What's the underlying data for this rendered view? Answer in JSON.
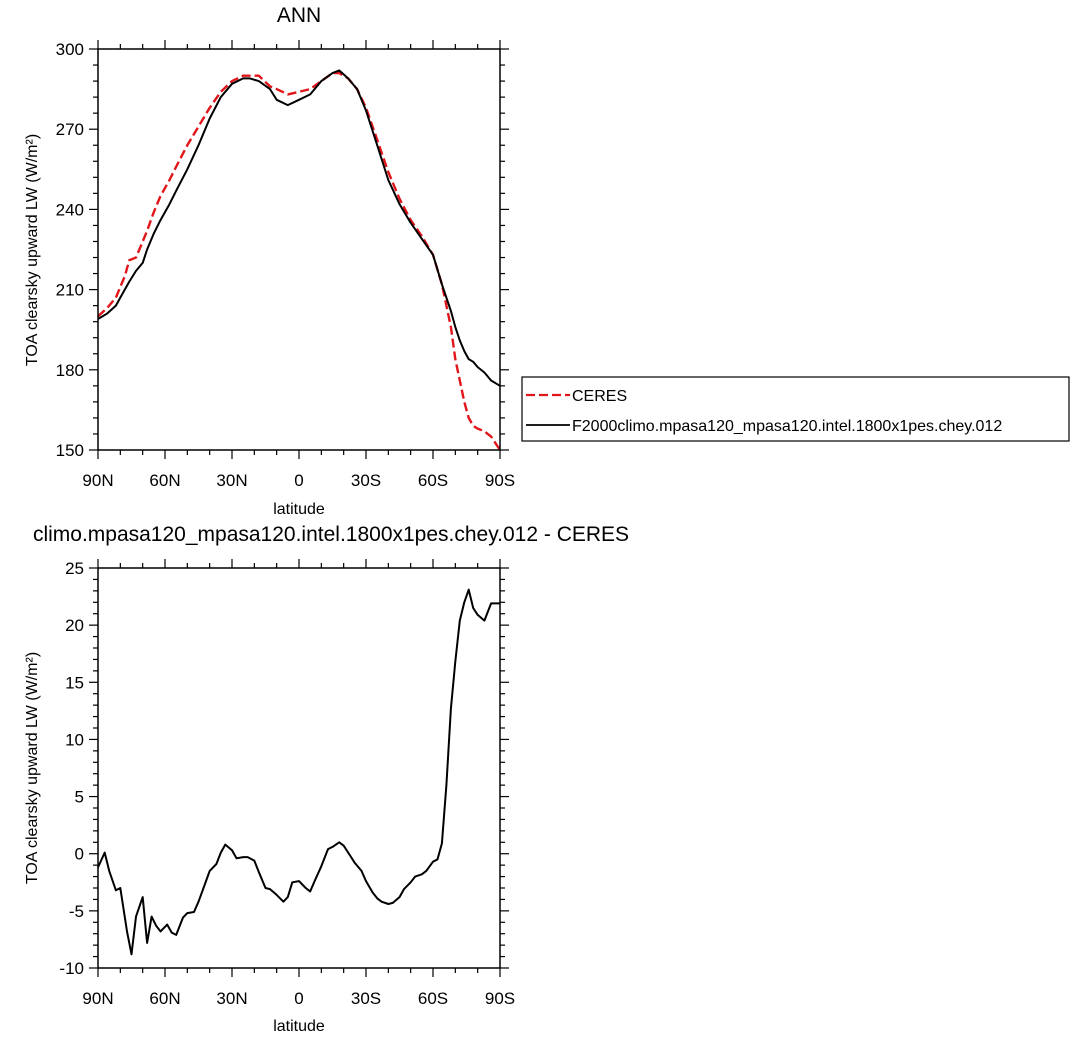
{
  "chart_data": [
    {
      "type": "line",
      "title": "ANN",
      "xlabel": "latitude",
      "ylabel": "TOA clearsky upward LW (W/m²)",
      "xlim": [
        -90,
        90
      ],
      "ylim": [
        150,
        300
      ],
      "x_ticks": [
        -90,
        -60,
        -30,
        0,
        30,
        60,
        90
      ],
      "x_tick_labels": [
        "90N",
        "60N",
        "30N",
        "0",
        "30S",
        "60S",
        "90S"
      ],
      "y_ticks": [
        150,
        180,
        210,
        240,
        270,
        300
      ],
      "y_tick_labels": [
        "150",
        "180",
        "210",
        "240",
        "270",
        "300"
      ],
      "legend_position": "right",
      "series": [
        {
          "name": "CERES",
          "color": "#e0161b",
          "style": "dashed",
          "x": [
            -90,
            -86,
            -82,
            -80,
            -78,
            -76,
            -73,
            -70,
            -68,
            -65,
            -62,
            -58,
            -55,
            -50,
            -45,
            -40,
            -35,
            -30,
            -25,
            -22,
            -18,
            -13,
            -10,
            -5,
            0,
            5,
            10,
            15,
            18,
            22,
            26,
            30,
            35,
            40,
            45,
            50,
            55,
            60,
            64,
            68,
            70,
            72,
            74,
            76,
            78,
            80,
            83,
            86,
            90
          ],
          "values": [
            200,
            203,
            207,
            211,
            215,
            221,
            222,
            228,
            232,
            239,
            245,
            251,
            256,
            264,
            271,
            278,
            284,
            288,
            290,
            290,
            290,
            286,
            285,
            283,
            284,
            285,
            288,
            291,
            291,
            289,
            285,
            278,
            266,
            254,
            244,
            236,
            230,
            223,
            212,
            196,
            184,
            176,
            168,
            162,
            159,
            158,
            157,
            155,
            150
          ]
        },
        {
          "name": "F2000climo.mpasa120_mpasa120.intel.1800x1pes.chey.012",
          "color": "#000000",
          "style": "solid",
          "x": [
            -90,
            -86,
            -82,
            -80,
            -78,
            -76,
            -73,
            -70,
            -68,
            -65,
            -62,
            -58,
            -55,
            -50,
            -45,
            -40,
            -35,
            -30,
            -25,
            -22,
            -18,
            -13,
            -10,
            -5,
            0,
            5,
            10,
            15,
            18,
            22,
            26,
            30,
            35,
            40,
            45,
            50,
            55,
            60,
            64,
            68,
            70,
            72,
            74,
            76,
            78,
            80,
            83,
            86,
            90
          ],
          "values": [
            199,
            201,
            204,
            207,
            210,
            213,
            217,
            220,
            225,
            231,
            236,
            242,
            247,
            255,
            264,
            274,
            282,
            287,
            289,
            289,
            288,
            285,
            281,
            279,
            281,
            283,
            288,
            291,
            292,
            289,
            285,
            277,
            264,
            251,
            242,
            235,
            229,
            223,
            212,
            202,
            196,
            191,
            187,
            184,
            183,
            181,
            179,
            176,
            174
          ]
        }
      ]
    },
    {
      "type": "line",
      "title": "climo.mpasa120_mpasa120.intel.1800x1pes.chey.012 - CERES",
      "xlabel": "latitude",
      "ylabel": "TOA clearsky upward LW (W/m²)",
      "xlim": [
        -90,
        90
      ],
      "ylim": [
        -10,
        25
      ],
      "x_ticks": [
        -90,
        -60,
        -30,
        0,
        30,
        60,
        90
      ],
      "x_tick_labels": [
        "90N",
        "60N",
        "30N",
        "0",
        "30S",
        "60S",
        "90S"
      ],
      "y_ticks": [
        -10,
        -5,
        0,
        5,
        10,
        15,
        20,
        25
      ],
      "y_tick_labels": [
        "-10",
        "-5",
        "0",
        "5",
        "10",
        "15",
        "20",
        "25"
      ],
      "series": [
        {
          "color": "#000000",
          "style": "solid",
          "x": [
            -90,
            -87,
            -85,
            -82,
            -80,
            -77,
            -75,
            -73,
            -70,
            -68,
            -66,
            -64,
            -62,
            -59,
            -57,
            -55,
            -52,
            -50,
            -47,
            -45,
            -42,
            -40,
            -37,
            -35,
            -33,
            -30,
            -28,
            -25,
            -23,
            -20,
            -18,
            -15,
            -13,
            -10,
            -7,
            -5,
            -3,
            0,
            3,
            5,
            7,
            10,
            13,
            15,
            18,
            20,
            23,
            25,
            28,
            30,
            33,
            35,
            37,
            40,
            42,
            45,
            47,
            50,
            52,
            55,
            57,
            60,
            62,
            64,
            66,
            68,
            70,
            72,
            74,
            76,
            78,
            80,
            83,
            86,
            88,
            90
          ],
          "values": [
            -1.2,
            0.1,
            -1.5,
            -3.2,
            -3.0,
            -6.8,
            -8.8,
            -5.5,
            -3.8,
            -7.8,
            -5.5,
            -6.3,
            -6.8,
            -6.2,
            -6.9,
            -7.1,
            -5.6,
            -5.2,
            -5.1,
            -4.2,
            -2.6,
            -1.5,
            -0.9,
            0.1,
            0.8,
            0.3,
            -0.4,
            -0.3,
            -0.3,
            -0.6,
            -1.6,
            -3.0,
            -3.1,
            -3.6,
            -4.2,
            -3.8,
            -2.5,
            -2.4,
            -3.0,
            -3.3,
            -2.4,
            -1.1,
            0.4,
            0.6,
            1.0,
            0.7,
            -0.2,
            -0.8,
            -1.5,
            -2.4,
            -3.4,
            -3.9,
            -4.2,
            -4.4,
            -4.3,
            -3.8,
            -3.1,
            -2.5,
            -2.0,
            -1.8,
            -1.5,
            -0.7,
            -0.5,
            0.9,
            6.0,
            12.7,
            16.8,
            20.4,
            22.0,
            23.1,
            21.5,
            20.9,
            20.4,
            21.9,
            21.9,
            21.9
          ]
        }
      ]
    }
  ]
}
